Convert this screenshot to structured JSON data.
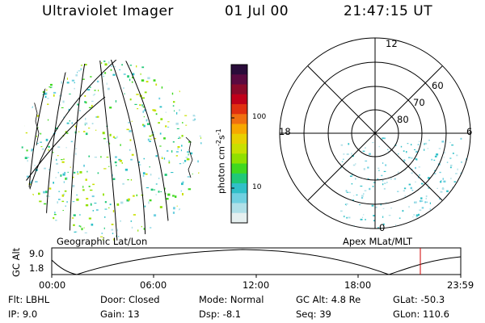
{
  "header": {
    "title": "Ultraviolet Imager",
    "date": "01 Jul 00",
    "time": "21:47:15 UT"
  },
  "projections": {
    "left_label": "Geographic Lat/Lon",
    "right_label": "Apex MLat/MLT"
  },
  "colorbar": {
    "unit_text": "photon cm",
    "unit_exp1": "-2",
    "unit_s": "s",
    "unit_exp2": "-1",
    "ticks": [
      "100",
      "10"
    ],
    "colors": [
      "#2a0c3a",
      "#5a0a40",
      "#8a0a2a",
      "#c0001a",
      "#e03010",
      "#f07010",
      "#f7a800",
      "#e8d000",
      "#c8e000",
      "#90e000",
      "#40d820",
      "#20c878",
      "#30c0c8",
      "#70d0e0",
      "#b0e0e8",
      "#e6f0f0"
    ]
  },
  "polar": {
    "mlt_labels": {
      "top": "12",
      "left": "18",
      "right": "6",
      "bottom": "0"
    },
    "lat_labels": [
      "60",
      "70",
      "80"
    ]
  },
  "timeline": {
    "axis_label": "GC Alt",
    "y_ticks": [
      "9.0",
      "1.8"
    ],
    "x_ticks": [
      "00:00",
      "06:00",
      "12:00",
      "18:00",
      "23:59"
    ],
    "marker_color": "#d00000"
  },
  "status": {
    "flt": "Flt: LBHL",
    "ip": "IP:  9.0",
    "door": "Door: Closed",
    "gain": "Gain: 13",
    "mode": "Mode: Normal",
    "dsp": "Dsp:   -8.1",
    "gc_alt": "GC Alt: 4.8 Re",
    "seq": "Seq: 39",
    "glat": "GLat: -50.3",
    "glon": "GLon: 110.6"
  }
}
